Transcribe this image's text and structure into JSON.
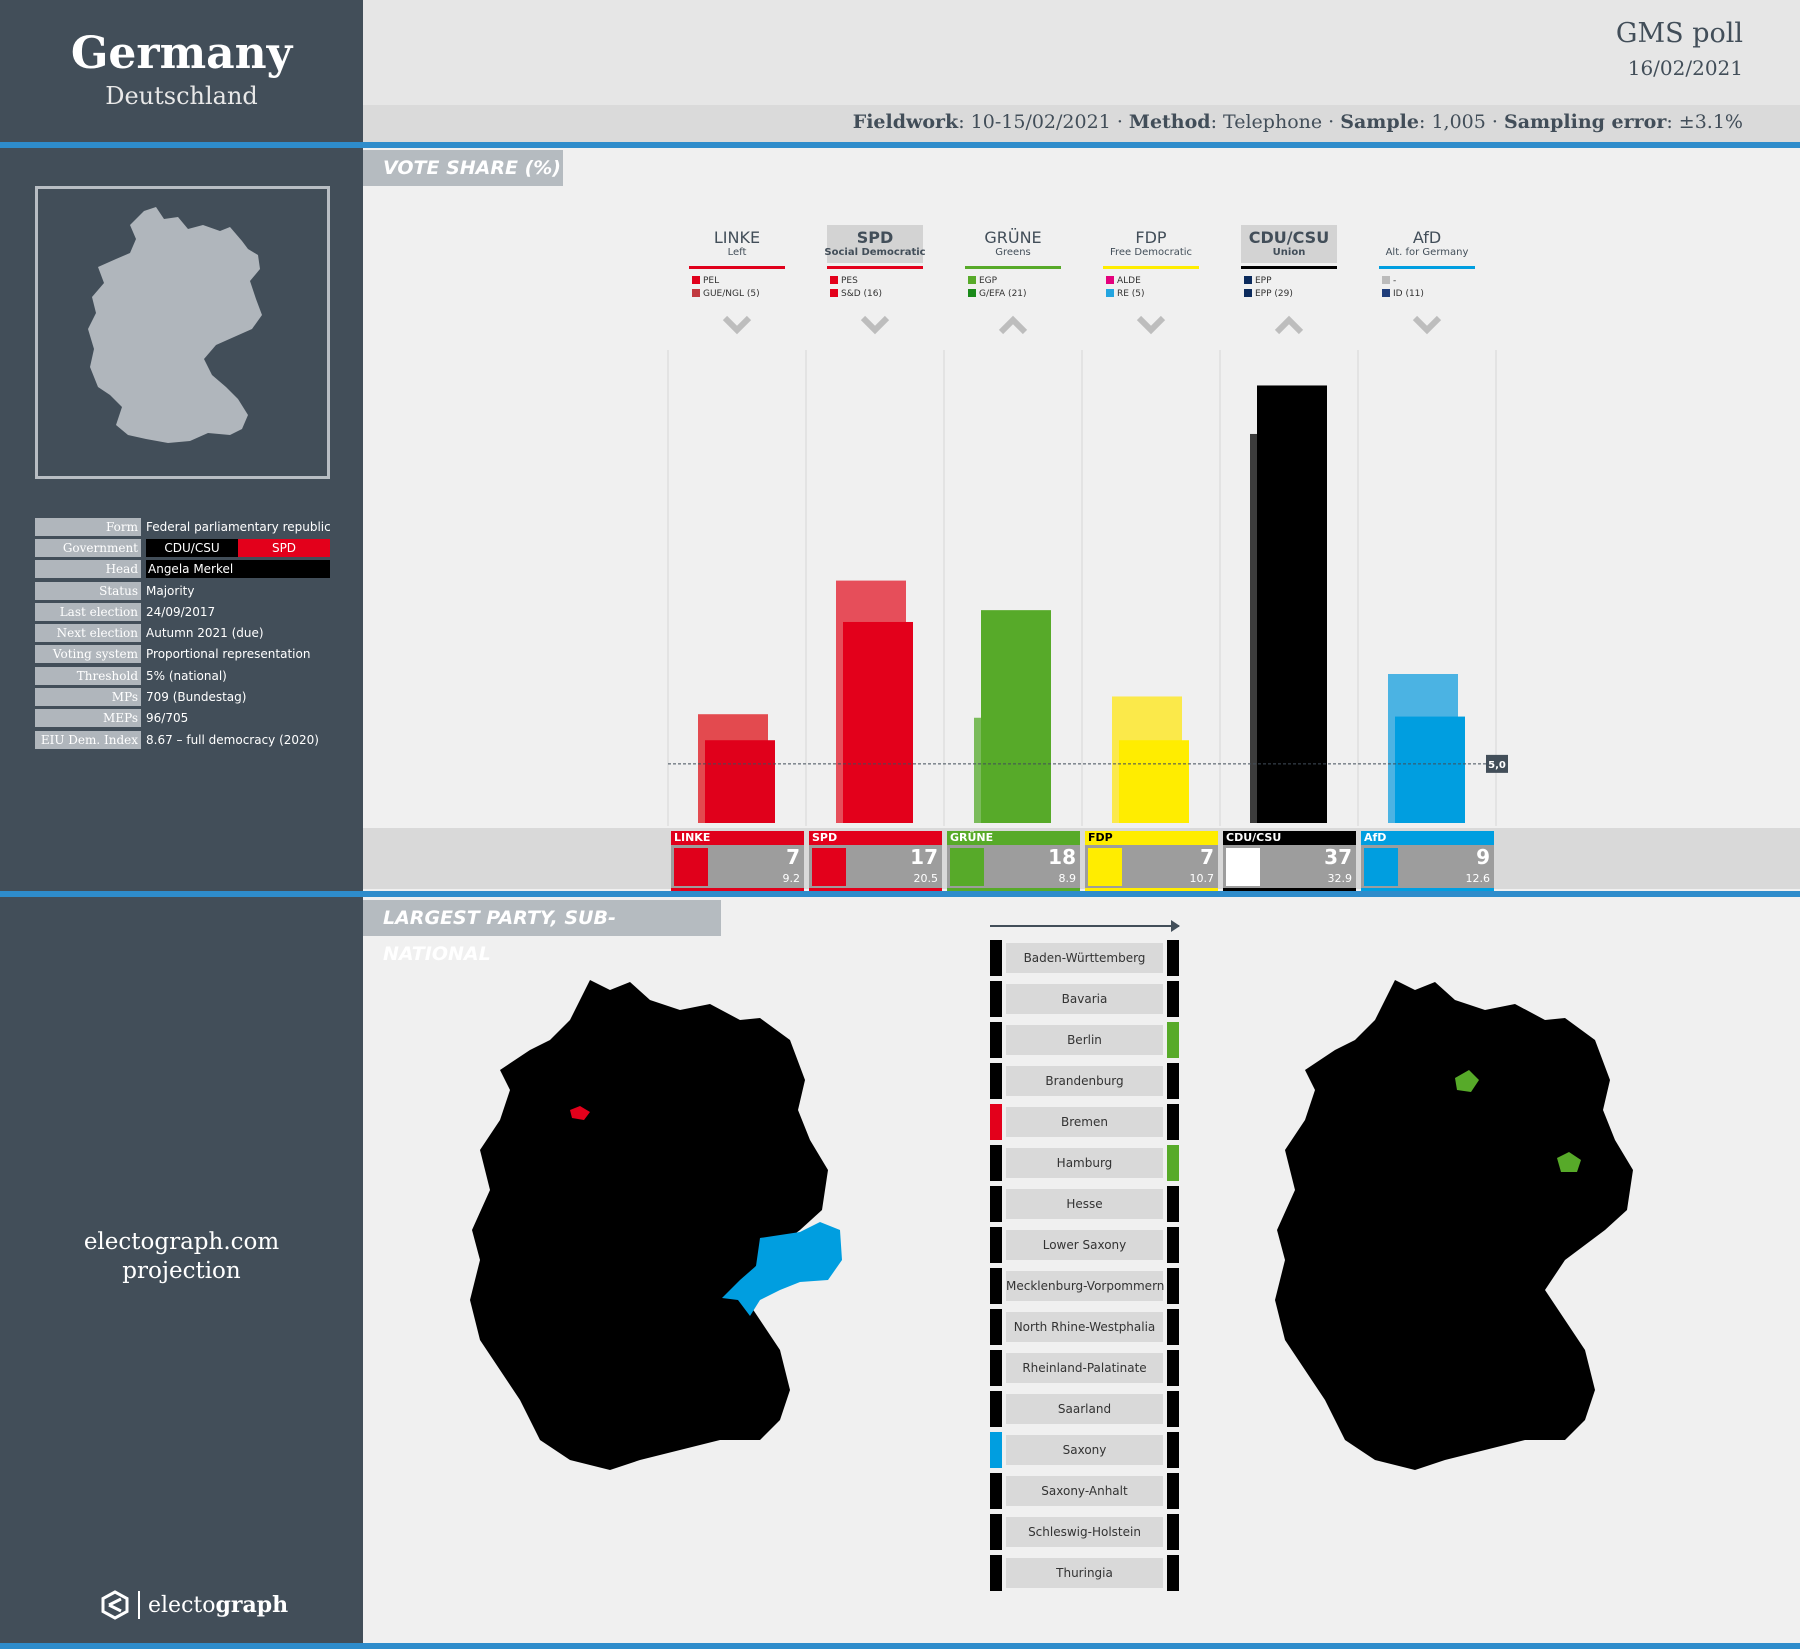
{
  "country": {
    "name": "Germany",
    "native": "Deutschland"
  },
  "poll": {
    "pollster": "GMS",
    "poll_word": "poll",
    "date": "16/02/2021",
    "fieldwork_label": "Fieldwork",
    "fieldwork": "10-15/02/2021",
    "method_label": "Method",
    "method": "Telephone",
    "sample_label": "Sample",
    "sample": "1,005",
    "error_label": "Sampling error",
    "error": "±3.1%"
  },
  "info": [
    {
      "label": "Form",
      "value": "Federal parliamentary republic"
    },
    {
      "label": "Government",
      "value": ""
    },
    {
      "label": "Head",
      "value": "Angela Merkel"
    },
    {
      "label": "Status",
      "value": "Majority"
    },
    {
      "label": "Last election",
      "value": "24/09/2017"
    },
    {
      "label": "Next election",
      "value": "Autumn 2021 (due)"
    },
    {
      "label": "Voting system",
      "value": "Proportional representation"
    },
    {
      "label": "Threshold",
      "value": "5% (national)"
    },
    {
      "label": "MPs",
      "value": "709 (Bundestag)"
    },
    {
      "label": "MEPs",
      "value": "96/705"
    },
    {
      "label": "EIU Dem. Index",
      "value": "8.67 – full democracy (2020)"
    }
  ],
  "government": [
    {
      "party": "CDU/CSU",
      "color": "#000000"
    },
    {
      "party": "SPD",
      "color": "#e3001b"
    }
  ],
  "projection": {
    "line1": "electograph.com",
    "line2": "projection"
  },
  "brand": {
    "pre": "electo",
    "bold": "graph"
  },
  "sections": {
    "vote_share": "VOTE SHARE (%)",
    "subnational": "LARGEST PARTY, SUB-NATIONAL"
  },
  "chart_data": {
    "type": "bar",
    "title": "VOTE SHARE (%)",
    "ylim": [
      0,
      40
    ],
    "threshold": 5.0,
    "threshold_label": "5,0",
    "parties": [
      {
        "name": "LINKE",
        "desc": "Left",
        "color": "#e0001b",
        "prev_color": "#e34a4f",
        "current": 7,
        "previous": 9.2,
        "trend": "down",
        "in_gov": false,
        "eu": [
          {
            "name": "PEL",
            "color": "#e0001b"
          },
          {
            "name": "GUE/NGL (5)",
            "color": "#c1393f"
          }
        ],
        "header": "LINKE"
      },
      {
        "name": "SPD",
        "desc": "Social Democratic",
        "color": "#e3001b",
        "prev_color": "#e64e5a",
        "current": 17,
        "previous": 20.5,
        "trend": "down",
        "in_gov": true,
        "eu": [
          {
            "name": "PES",
            "color": "#e3001b"
          },
          {
            "name": "S&D (16)",
            "color": "#e3001b"
          }
        ],
        "header": "SPD"
      },
      {
        "name": "GRÜNE",
        "desc": "Greens",
        "color": "#57aa29",
        "prev_color": "#7abb5a",
        "current": 18,
        "previous": 8.9,
        "trend": "up",
        "in_gov": false,
        "eu": [
          {
            "name": "EGP",
            "color": "#57aa29"
          },
          {
            "name": "G/EFA (21)",
            "color": "#1a8a1a"
          }
        ],
        "header": "GRÜNE"
      },
      {
        "name": "FDP",
        "desc": "Free Democratic",
        "color": "#ffed00",
        "prev_color": "#fbe94a",
        "current": 7,
        "previous": 10.7,
        "trend": "down",
        "in_gov": false,
        "eu": [
          {
            "name": "ALDE",
            "color": "#e4007c"
          },
          {
            "name": "RE (5)",
            "color": "#23a5e0"
          }
        ],
        "header": "FDP"
      },
      {
        "name": "CDU/CSU",
        "desc": "Union",
        "color": "#000000",
        "prev_color": "#3c3c3c",
        "current": 37,
        "previous": 32.9,
        "trend": "up",
        "in_gov": true,
        "eu": [
          {
            "name": "EPP",
            "color": "#0b2a5c"
          },
          {
            "name": "EPP (29)",
            "color": "#0b2a5c"
          }
        ],
        "header": "CDU/CSU"
      },
      {
        "name": "AfD",
        "desc": "Alt. for Germany",
        "color": "#009ee0",
        "prev_color": "#4bb3e3",
        "current": 9,
        "previous": 12.6,
        "trend": "down",
        "in_gov": false,
        "eu": [
          {
            "name": "-",
            "color": "#bbbbbb"
          },
          {
            "name": "ID (11)",
            "color": "#1f3d7a"
          }
        ],
        "header": "AfD"
      }
    ]
  },
  "regions": [
    {
      "name": "Baden-Württemberg",
      "prev": "#000000",
      "now": "#000000"
    },
    {
      "name": "Bavaria",
      "prev": "#000000",
      "now": "#000000"
    },
    {
      "name": "Berlin",
      "prev": "#000000",
      "now": "#57aa29"
    },
    {
      "name": "Brandenburg",
      "prev": "#000000",
      "now": "#000000"
    },
    {
      "name": "Bremen",
      "prev": "#e3001b",
      "now": "#000000"
    },
    {
      "name": "Hamburg",
      "prev": "#000000",
      "now": "#57aa29"
    },
    {
      "name": "Hesse",
      "prev": "#000000",
      "now": "#000000"
    },
    {
      "name": "Lower Saxony",
      "prev": "#000000",
      "now": "#000000"
    },
    {
      "name": "Mecklenburg-Vorpommern",
      "prev": "#000000",
      "now": "#000000"
    },
    {
      "name": "North Rhine-Westphalia",
      "prev": "#000000",
      "now": "#000000"
    },
    {
      "name": "Rheinland-Palatinate",
      "prev": "#000000",
      "now": "#000000"
    },
    {
      "name": "Saarland",
      "prev": "#000000",
      "now": "#000000"
    },
    {
      "name": "Saxony",
      "prev": "#009ee0",
      "now": "#000000"
    },
    {
      "name": "Saxony-Anhalt",
      "prev": "#000000",
      "now": "#000000"
    },
    {
      "name": "Schleswig-Holstein",
      "prev": "#000000",
      "now": "#000000"
    },
    {
      "name": "Thuringia",
      "prev": "#000000",
      "now": "#000000"
    }
  ]
}
